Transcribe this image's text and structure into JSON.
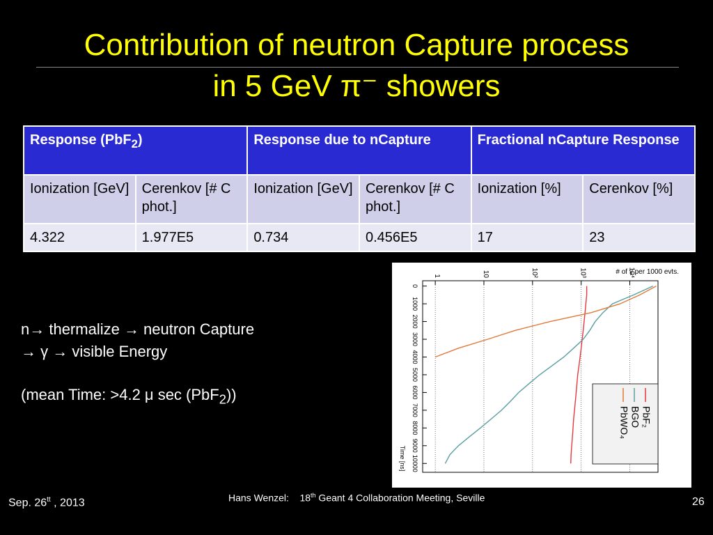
{
  "title": {
    "line1": "Contribution of neutron Capture process",
    "line2": "in 5 GeV π⁻ showers"
  },
  "table": {
    "header": [
      [
        "Response (PbF",
        "2",
        ")"
      ],
      [
        "Response due to nCapture"
      ],
      [
        "Fractional nCapture Response"
      ]
    ],
    "subheader": [
      "Ionization [GeV]",
      "Cerenkov [# C phot.]",
      "Ionization [GeV]",
      "Cerenkov [# C phot.]",
      "Ionization [%]",
      "Cerenkov [%]"
    ],
    "rows": [
      [
        "4.322",
        "1.977E5",
        "0.734",
        "0.456E5",
        "17",
        "23"
      ]
    ]
  },
  "body": {
    "line1": "n→ thermalize  → neutron Capture",
    "line2": "→ γ → visible Energy",
    "line3": [
      "(mean Time: >4.2 μ sec (PbF",
      "2",
      "))"
    ]
  },
  "footer": {
    "date": [
      "Sep.  26",
      "tt",
      " , 2013"
    ],
    "center": [
      "Hans Wenzel:    18",
      "th",
      " Geant 4 Collaboration Meeting, Seville"
    ],
    "page": "26"
  },
  "chart_data": {
    "type": "line",
    "ylabel": "# of γ per 1000 evts.",
    "xlabel": "Time [ns]",
    "log_y": true,
    "grid": true,
    "x": [
      0,
      500,
      1000,
      1500,
      2000,
      2500,
      3000,
      3500,
      4000,
      4500,
      5000,
      5500,
      6000,
      6500,
      7000,
      7500,
      8000,
      8500,
      9000,
      9500,
      10000
    ],
    "xlim": [
      -300,
      10500
    ],
    "xticks": [
      0,
      1000,
      2000,
      3000,
      4000,
      5000,
      6000,
      7000,
      8000,
      9000,
      10000
    ],
    "ylim": [
      0.55,
      38000
    ],
    "yticks": [
      1,
      10,
      {
        "value": 100,
        "label": "10²"
      },
      {
        "value": 1000,
        "label": "10³"
      },
      {
        "value": 10000,
        "label": "10⁴"
      }
    ],
    "series": [
      {
        "name": "PbF₂",
        "color": "#e8383d",
        "values": [
          1300,
          1300,
          1250,
          1200,
          1150,
          1100,
          1050,
          1000,
          950,
          900,
          850,
          820,
          790,
          760,
          730,
          700,
          680,
          660,
          640,
          620,
          610
        ]
      },
      {
        "name": "BGO",
        "color": "#5a9ea0",
        "values": [
          30000,
          12000,
          4400,
          2800,
          1950,
          1500,
          1100,
          700,
          440,
          250,
          140,
          85,
          52,
          35,
          23,
          14,
          8.5,
          5,
          3,
          2,
          1.6
        ]
      },
      {
        "name": "PbWO₄",
        "color": "#e07a3a",
        "values": [
          35000,
          16000,
          6300,
          1600,
          230,
          44,
          12,
          3,
          1,
          null,
          null,
          null,
          null,
          null,
          null,
          null,
          null,
          null,
          null,
          null,
          null
        ]
      }
    ]
  }
}
